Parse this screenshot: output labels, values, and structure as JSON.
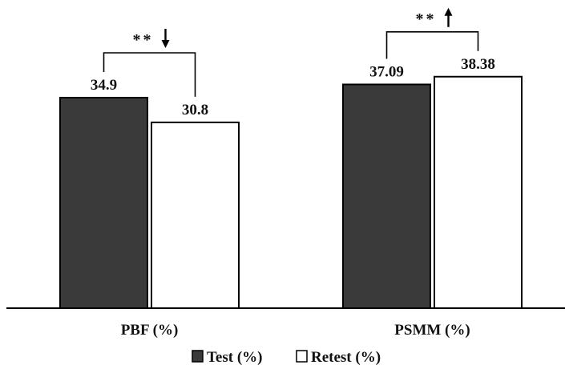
{
  "chart_data": {
    "type": "bar",
    "categories": [
      "PBF (%)",
      "PSMM (%)"
    ],
    "series": [
      {
        "name": "Test (%)",
        "values": [
          34.9,
          37.09
        ],
        "labels": [
          "34.9",
          "37.09"
        ],
        "color": "#3a3a3a"
      },
      {
        "name": "Retest (%)",
        "values": [
          30.8,
          38.38
        ],
        "labels": [
          "30.8",
          "38.38"
        ],
        "color": "#ffffff"
      }
    ],
    "significance": [
      {
        "category": "PBF (%)",
        "text": "**",
        "direction": "down"
      },
      {
        "category": "PSMM (%)",
        "text": "**",
        "direction": "up"
      }
    ],
    "title": "",
    "xlabel": "",
    "ylabel": "",
    "legend_position": "bottom-center",
    "grid": false
  }
}
